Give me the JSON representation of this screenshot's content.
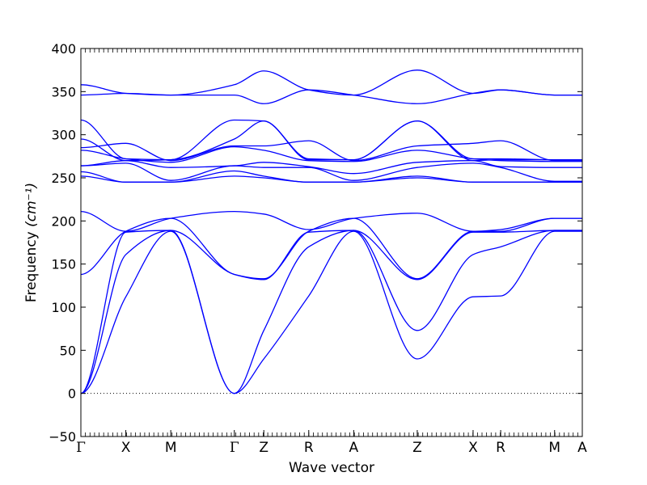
{
  "chart_data": {
    "type": "line",
    "title": "",
    "xlabel": "Wave vector",
    "ylabel": "Frequency",
    "ylabel_unit": "(cm⁻¹)",
    "ylim": [
      -50,
      400
    ],
    "yticks": [
      -50,
      0,
      50,
      100,
      150,
      200,
      250,
      300,
      350,
      400
    ],
    "grid": false,
    "zero_line": true,
    "line_color": "#0000ff",
    "path": {
      "points": [
        "Γ",
        "X",
        "M",
        "Γ",
        "Z",
        "R",
        "A",
        "Z",
        "X",
        "R",
        "M",
        "A"
      ],
      "position": [
        0,
        0.5,
        1.0,
        1.707,
        2.035,
        2.535,
        3.035,
        3.742,
        4.363,
        4.67,
        5.27,
        5.578
      ]
    },
    "series": [
      {
        "x": [
          0,
          0.5,
          1.0,
          1.707,
          2.035,
          2.535,
          3.035,
          3.742,
          4.363,
          4.67,
          5.27,
          5.578
        ],
        "values": [
          0,
          112,
          188,
          0,
          40,
          113,
          188,
          40,
          112,
          113,
          188,
          188
        ]
      },
      {
        "x": [
          0,
          0.5,
          1.0,
          1.707,
          2.035,
          2.535,
          3.035,
          3.742,
          4.363,
          4.67,
          5.27,
          5.578
        ],
        "values": [
          0,
          161,
          189,
          0,
          73,
          170,
          189,
          73,
          161,
          170,
          189,
          189
        ]
      },
      {
        "x": [
          0,
          0.5,
          1.0,
          1.707,
          2.035,
          2.535,
          3.035,
          3.742,
          4.363,
          4.67,
          5.27,
          5.578
        ],
        "values": [
          0,
          187,
          189,
          138,
          132,
          187,
          189,
          132,
          187,
          187,
          189,
          189
        ]
      },
      {
        "x": [
          0,
          0.5,
          1.0,
          1.707,
          2.035,
          2.535,
          3.035,
          3.742,
          4.363,
          4.67,
          5.27,
          5.578
        ],
        "values": [
          138,
          188,
          203,
          138,
          133,
          188,
          203,
          133,
          188,
          188,
          203,
          203
        ]
      },
      {
        "x": [
          0,
          0.5,
          1.0,
          1.707,
          2.035,
          2.535,
          3.035,
          3.742,
          4.363,
          4.67,
          5.27,
          5.578
        ],
        "values": [
          211,
          188,
          203,
          211,
          208,
          190,
          203,
          209,
          188,
          190,
          203,
          203
        ]
      },
      {
        "x": [
          0,
          0.5,
          1.0,
          1.707,
          2.035,
          2.535,
          3.035,
          3.742,
          4.363,
          4.67,
          5.27,
          5.578
        ],
        "values": [
          252,
          245,
          245,
          252,
          250,
          245,
          245,
          250,
          245,
          245,
          245,
          245
        ]
      },
      {
        "x": [
          0,
          0.5,
          1.0,
          1.707,
          2.035,
          2.535,
          3.035,
          3.742,
          4.363,
          4.67,
          5.27,
          5.578
        ],
        "values": [
          257,
          245,
          245,
          258,
          252,
          245,
          245,
          252,
          245,
          245,
          245,
          245
        ]
      },
      {
        "x": [
          0,
          0.5,
          1.0,
          1.707,
          2.035,
          2.535,
          3.035,
          3.742,
          4.363,
          4.67,
          5.27,
          5.578
        ],
        "values": [
          264,
          267,
          247,
          264,
          262,
          262,
          247,
          262,
          267,
          262,
          246,
          246
        ]
      },
      {
        "x": [
          0,
          0.5,
          1.0,
          1.707,
          2.035,
          2.535,
          3.035,
          3.742,
          4.363,
          4.67,
          5.27,
          5.578
        ],
        "values": [
          264,
          270,
          262,
          264,
          268,
          263,
          255,
          268,
          270,
          263,
          262,
          262
        ]
      },
      {
        "x": [
          0,
          0.5,
          1.0,
          1.707,
          2.035,
          2.535,
          3.035,
          3.742,
          4.363,
          4.67,
          5.27,
          5.578
        ],
        "values": [
          282,
          272,
          268,
          286,
          282,
          270,
          269,
          282,
          272,
          270,
          269,
          269
        ]
      },
      {
        "x": [
          0,
          0.5,
          1.0,
          1.707,
          2.035,
          2.535,
          3.035,
          3.742,
          4.363,
          4.67,
          5.27,
          5.578
        ],
        "values": [
          285,
          290,
          270,
          287,
          287,
          293,
          270,
          287,
          290,
          293,
          270,
          270
        ]
      },
      {
        "x": [
          0,
          0.5,
          1.0,
          1.707,
          2.035,
          2.535,
          3.035,
          3.742,
          4.363,
          4.67,
          5.27,
          5.578
        ],
        "values": [
          295,
          270,
          271,
          295,
          316,
          271,
          271,
          316,
          270,
          271,
          271,
          271
        ]
      },
      {
        "x": [
          0,
          0.5,
          1.0,
          1.707,
          2.035,
          2.535,
          3.035,
          3.742,
          4.363,
          4.67,
          5.27,
          5.578
        ],
        "values": [
          317,
          272,
          271,
          317,
          316,
          272,
          271,
          316,
          272,
          272,
          271,
          271
        ]
      },
      {
        "x": [
          0,
          0.5,
          1.0,
          1.707,
          2.035,
          2.535,
          3.035,
          3.742,
          4.363,
          4.67,
          5.27,
          5.578
        ],
        "values": [
          346,
          348,
          346,
          346,
          336,
          352,
          346,
          336,
          348,
          352,
          346,
          346
        ]
      },
      {
        "x": [
          0,
          0.5,
          1.0,
          1.707,
          2.035,
          2.535,
          3.035,
          3.742,
          4.363,
          4.67,
          5.27,
          5.578
        ],
        "values": [
          358,
          348,
          346,
          358,
          374,
          352,
          346,
          375,
          348,
          352,
          346,
          346
        ]
      }
    ]
  }
}
